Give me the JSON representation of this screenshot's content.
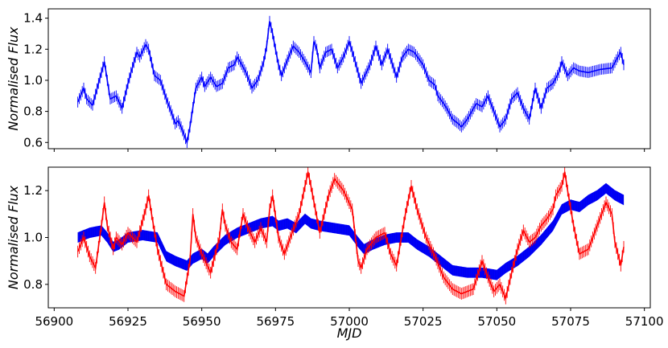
{
  "chart_data": [
    {
      "type": "line",
      "panel": "top",
      "xlabel": "",
      "ylabel": "Normalised Flux",
      "xlim": [
        56898,
        57102
      ],
      "ylim": [
        0.56,
        1.46
      ],
      "x_ticks": [
        56900,
        56925,
        56950,
        56975,
        57000,
        57025,
        57050,
        57075,
        57100
      ],
      "x_tick_labels_shown": false,
      "y_ticks": [
        0.6,
        0.8,
        1.0,
        1.2,
        1.4
      ],
      "y_tick_labels": [
        "0.6",
        "0.8",
        "1.0",
        "1.2",
        "1.4"
      ],
      "grid": false,
      "series": [
        {
          "color": "#0000ff",
          "style": "line with dense vertical error bars",
          "points": [
            [
              56908,
              0.86
            ],
            [
              56910,
              0.95
            ],
            [
              56911,
              0.88
            ],
            [
              56913,
              0.84
            ],
            [
              56916,
              1.05
            ],
            [
              56917,
              1.12
            ],
            [
              56918,
              1.0
            ],
            [
              56919,
              0.88
            ],
            [
              56921,
              0.9
            ],
            [
              56923,
              0.82
            ],
            [
              56925,
              0.98
            ],
            [
              56926,
              1.05
            ],
            [
              56928,
              1.18
            ],
            [
              56929,
              1.15
            ],
            [
              56931,
              1.23
            ],
            [
              56932,
              1.2
            ],
            [
              56934,
              1.03
            ],
            [
              56936,
              1.0
            ],
            [
              56938,
              0.88
            ],
            [
              56940,
              0.78
            ],
            [
              56941,
              0.72
            ],
            [
              56942,
              0.74
            ],
            [
              56943,
              0.7
            ],
            [
              56945,
              0.6
            ],
            [
              56946,
              0.7
            ],
            [
              56948,
              0.95
            ],
            [
              56950,
              1.02
            ],
            [
              56951,
              0.96
            ],
            [
              56953,
              1.02
            ],
            [
              56955,
              0.96
            ],
            [
              56957,
              0.98
            ],
            [
              56959,
              1.08
            ],
            [
              56961,
              1.1
            ],
            [
              56962,
              1.15
            ],
            [
              56963,
              1.12
            ],
            [
              56965,
              1.05
            ],
            [
              56967,
              0.95
            ],
            [
              56969,
              1.0
            ],
            [
              56971,
              1.12
            ],
            [
              56972,
              1.22
            ],
            [
              56973,
              1.38
            ],
            [
              56974,
              1.3
            ],
            [
              56976,
              1.1
            ],
            [
              56977,
              1.03
            ],
            [
              56979,
              1.13
            ],
            [
              56981,
              1.22
            ],
            [
              56983,
              1.18
            ],
            [
              56985,
              1.12
            ],
            [
              56987,
              1.05
            ],
            [
              56988,
              1.25
            ],
            [
              56989,
              1.2
            ],
            [
              56990,
              1.08
            ],
            [
              56992,
              1.18
            ],
            [
              56994,
              1.2
            ],
            [
              56996,
              1.08
            ],
            [
              56998,
              1.15
            ],
            [
              57000,
              1.25
            ],
            [
              57002,
              1.12
            ],
            [
              57004,
              0.98
            ],
            [
              57005,
              1.02
            ],
            [
              57007,
              1.1
            ],
            [
              57009,
              1.22
            ],
            [
              57011,
              1.1
            ],
            [
              57013,
              1.2
            ],
            [
              57015,
              1.08
            ],
            [
              57016,
              1.02
            ],
            [
              57018,
              1.15
            ],
            [
              57020,
              1.2
            ],
            [
              57022,
              1.18
            ],
            [
              57025,
              1.1
            ],
            [
              57027,
              1.0
            ],
            [
              57029,
              0.97
            ],
            [
              57030,
              0.9
            ],
            [
              57032,
              0.85
            ],
            [
              57033,
              0.82
            ],
            [
              57035,
              0.75
            ],
            [
              57037,
              0.72
            ],
            [
              57038,
              0.7
            ],
            [
              57040,
              0.75
            ],
            [
              57043,
              0.85
            ],
            [
              57045,
              0.83
            ],
            [
              57047,
              0.9
            ],
            [
              57049,
              0.8
            ],
            [
              57051,
              0.7
            ],
            [
              57053,
              0.75
            ],
            [
              57055,
              0.88
            ],
            [
              57057,
              0.92
            ],
            [
              57059,
              0.82
            ],
            [
              57061,
              0.75
            ],
            [
              57063,
              0.95
            ],
            [
              57065,
              0.82
            ],
            [
              57067,
              0.95
            ],
            [
              57069,
              0.98
            ],
            [
              57071,
              1.05
            ],
            [
              57072,
              1.12
            ],
            [
              57074,
              1.03
            ],
            [
              57076,
              1.08
            ],
            [
              57078,
              1.06
            ],
            [
              57081,
              1.05
            ],
            [
              57085,
              1.07
            ],
            [
              57089,
              1.08
            ],
            [
              57091,
              1.15
            ],
            [
              57092,
              1.18
            ],
            [
              57093,
              1.1
            ]
          ],
          "error": 0.035
        }
      ]
    },
    {
      "type": "line",
      "panel": "bottom",
      "xlabel": "MJD",
      "ylabel": "Normalised Flux",
      "xlim": [
        56898,
        57102
      ],
      "ylim": [
        0.7,
        1.3
      ],
      "x_ticks": [
        56900,
        56925,
        56950,
        56975,
        57000,
        57025,
        57050,
        57075,
        57100
      ],
      "x_tick_labels": [
        "56900",
        "56925",
        "56950",
        "56975",
        "57000",
        "57025",
        "57050",
        "57075",
        "57100"
      ],
      "y_ticks": [
        0.8,
        1.0,
        1.2
      ],
      "y_tick_labels": [
        "0.8",
        "1.0",
        "1.2"
      ],
      "grid": false,
      "series": [
        {
          "color": "#0000ff",
          "style": "thick band (model with error)",
          "points": [
            [
              56908,
              1.0
            ],
            [
              56912,
              1.02
            ],
            [
              56916,
              1.03
            ],
            [
              56918,
              1.0
            ],
            [
              56920,
              0.96
            ],
            [
              56922,
              0.97
            ],
            [
              56925,
              1.0
            ],
            [
              56930,
              1.01
            ],
            [
              56935,
              1.0
            ],
            [
              56938,
              0.92
            ],
            [
              56941,
              0.9
            ],
            [
              56945,
              0.88
            ],
            [
              56947,
              0.91
            ],
            [
              56950,
              0.93
            ],
            [
              56952,
              0.91
            ],
            [
              56954,
              0.94
            ],
            [
              56958,
              0.99
            ],
            [
              56962,
              1.02
            ],
            [
              56966,
              1.04
            ],
            [
              56970,
              1.06
            ],
            [
              56974,
              1.07
            ],
            [
              56976,
              1.05
            ],
            [
              56979,
              1.06
            ],
            [
              56982,
              1.04
            ],
            [
              56985,
              1.08
            ],
            [
              56987,
              1.06
            ],
            [
              56990,
              1.05
            ],
            [
              56995,
              1.04
            ],
            [
              57000,
              1.03
            ],
            [
              57003,
              0.98
            ],
            [
              57005,
              0.95
            ],
            [
              57008,
              0.97
            ],
            [
              57012,
              0.99
            ],
            [
              57016,
              1.0
            ],
            [
              57020,
              1.0
            ],
            [
              57023,
              0.97
            ],
            [
              57027,
              0.94
            ],
            [
              57031,
              0.9
            ],
            [
              57035,
              0.86
            ],
            [
              57040,
              0.85
            ],
            [
              57045,
              0.85
            ],
            [
              57050,
              0.84
            ],
            [
              57053,
              0.87
            ],
            [
              57057,
              0.9
            ],
            [
              57061,
              0.94
            ],
            [
              57065,
              0.99
            ],
            [
              57069,
              1.05
            ],
            [
              57072,
              1.12
            ],
            [
              57075,
              1.14
            ],
            [
              57078,
              1.13
            ],
            [
              57081,
              1.16
            ],
            [
              57084,
              1.18
            ],
            [
              57087,
              1.21
            ],
            [
              57090,
              1.18
            ],
            [
              57093,
              1.16
            ]
          ],
          "error": 0.022
        },
        {
          "color": "#ff0000",
          "style": "line with error bars",
          "points": [
            [
              56908,
              0.94
            ],
            [
              56910,
              1.0
            ],
            [
              56912,
              0.92
            ],
            [
              56914,
              0.87
            ],
            [
              56916,
              1.05
            ],
            [
              56917,
              1.15
            ],
            [
              56918,
              1.05
            ],
            [
              56920,
              0.95
            ],
            [
              56921,
              1.0
            ],
            [
              56923,
              0.97
            ],
            [
              56925,
              1.02
            ],
            [
              56928,
              0.98
            ],
            [
              56931,
              1.12
            ],
            [
              56932,
              1.18
            ],
            [
              56933,
              1.1
            ],
            [
              56935,
              0.95
            ],
            [
              56938,
              0.8
            ],
            [
              56941,
              0.77
            ],
            [
              56944,
              0.75
            ],
            [
              56946,
              0.9
            ],
            [
              56947,
              1.1
            ],
            [
              56948,
              1.0
            ],
            [
              56950,
              0.93
            ],
            [
              56953,
              0.85
            ],
            [
              56956,
              1.0
            ],
            [
              56957,
              1.12
            ],
            [
              56958,
              1.05
            ],
            [
              56960,
              0.98
            ],
            [
              56962,
              0.95
            ],
            [
              56964,
              1.1
            ],
            [
              56966,
              1.03
            ],
            [
              56968,
              0.98
            ],
            [
              56970,
              1.04
            ],
            [
              56972,
              0.98
            ],
            [
              56973,
              1.12
            ],
            [
              56974,
              1.18
            ],
            [
              56976,
              1.0
            ],
            [
              56978,
              0.93
            ],
            [
              56980,
              1.0
            ],
            [
              56983,
              1.1
            ],
            [
              56986,
              1.28
            ],
            [
              56987,
              1.22
            ],
            [
              56990,
              1.02
            ],
            [
              56993,
              1.18
            ],
            [
              56995,
              1.25
            ],
            [
              56998,
              1.2
            ],
            [
              57001,
              1.12
            ],
            [
              57003,
              0.9
            ],
            [
              57004,
              0.87
            ],
            [
              57006,
              0.95
            ],
            [
              57009,
              1.0
            ],
            [
              57012,
              1.02
            ],
            [
              57014,
              0.93
            ],
            [
              57016,
              0.88
            ],
            [
              57019,
              1.1
            ],
            [
              57021,
              1.22
            ],
            [
              57023,
              1.12
            ],
            [
              57026,
              1.0
            ],
            [
              57029,
              0.92
            ],
            [
              57032,
              0.83
            ],
            [
              57035,
              0.78
            ],
            [
              57038,
              0.76
            ],
            [
              57042,
              0.78
            ],
            [
              57045,
              0.9
            ],
            [
              57047,
              0.83
            ],
            [
              57049,
              0.77
            ],
            [
              57051,
              0.8
            ],
            [
              57053,
              0.74
            ],
            [
              57055,
              0.85
            ],
            [
              57057,
              0.95
            ],
            [
              57059,
              1.03
            ],
            [
              57061,
              0.98
            ],
            [
              57063,
              1.0
            ],
            [
              57065,
              1.05
            ],
            [
              57067,
              1.08
            ],
            [
              57069,
              1.12
            ],
            [
              57070,
              1.18
            ],
            [
              57072,
              1.22
            ],
            [
              57073,
              1.28
            ],
            [
              57074,
              1.2
            ],
            [
              57076,
              1.05
            ],
            [
              57078,
              0.93
            ],
            [
              57081,
              0.95
            ],
            [
              57084,
              1.05
            ],
            [
              57087,
              1.15
            ],
            [
              57089,
              1.1
            ],
            [
              57090,
              0.98
            ],
            [
              57091,
              0.93
            ],
            [
              57092,
              0.88
            ],
            [
              57093,
              0.96
            ]
          ],
          "error": 0.025
        }
      ]
    }
  ]
}
